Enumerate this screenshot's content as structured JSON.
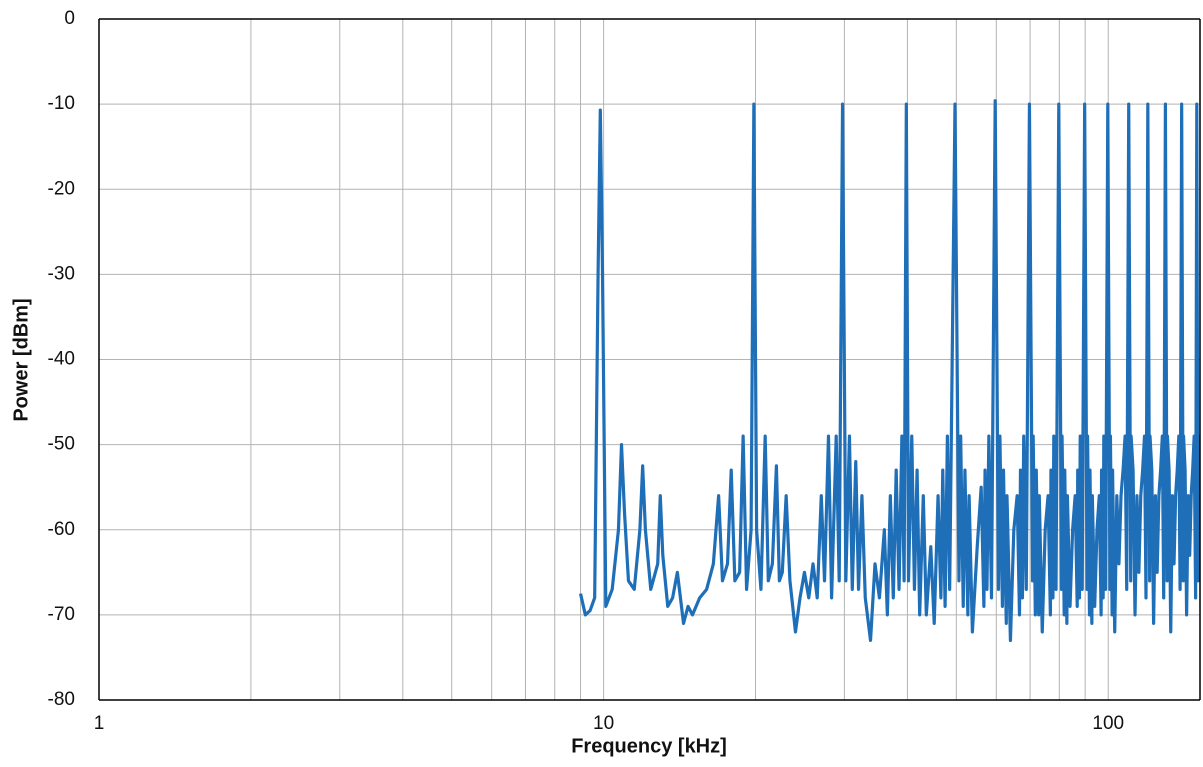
{
  "chart_data": {
    "type": "line",
    "x_label": "Frequency [kHz]",
    "y_label": "Power [dBm]",
    "xscale": "log",
    "xlim": [
      1,
      152
    ],
    "xticks": [
      1,
      10,
      100
    ],
    "xminor": [
      2,
      3,
      4,
      5,
      6,
      7,
      8,
      9,
      20,
      30,
      40,
      50,
      60,
      70,
      80,
      90
    ],
    "ylim": [
      -80,
      0
    ],
    "yticks": [
      0,
      -10,
      -20,
      -30,
      -40,
      -50,
      -60,
      -70,
      -80
    ],
    "grid": true,
    "x": [
      9,
      9.2,
      9.4,
      9.6,
      9.75,
      9.85,
      9.95,
      10.1,
      10.4,
      10.7,
      10.85,
      11,
      11.2,
      11.5,
      11.8,
      11.95,
      12.1,
      12.4,
      12.8,
      12.95,
      13.1,
      13.4,
      13.7,
      14,
      14.4,
      14.7,
      15,
      15.5,
      16,
      16.5,
      16.9,
      17.2,
      17.6,
      17.9,
      18.2,
      18.6,
      18.9,
      19.2,
      19.6,
      19.85,
      20.1,
      20.5,
      20.9,
      21.2,
      21.6,
      22,
      22.3,
      22.6,
      23,
      23.4,
      24,
      24.5,
      25,
      25.5,
      26,
      26.5,
      27,
      27.4,
      27.9,
      28.3,
      28.9,
      29.3,
      29.75,
      30.2,
      30.7,
      31.1,
      31.6,
      32,
      32.5,
      33,
      33.8,
      34.5,
      35.2,
      36,
      36.5,
      37,
      37.5,
      38,
      38.5,
      39,
      39.4,
      39.8,
      40.2,
      40.8,
      41.3,
      41.8,
      42.3,
      43,
      43.6,
      44.5,
      45.2,
      46,
      46.6,
      47,
      47.5,
      48,
      48.5,
      49.7,
      50.6,
      51,
      51.6,
      52,
      52.7,
      53,
      53.8,
      55,
      56,
      56.7,
      57,
      57.5,
      58,
      58.7,
      59.7,
      60.6,
      61,
      61.7,
      62,
      62.8,
      63,
      64,
      65,
      66,
      66.7,
      67,
      67.6,
      68,
      68.8,
      69.8,
      70.8,
      71,
      71.7,
      72,
      72.8,
      73,
      74,
      75,
      76,
      76.8,
      77,
      77.7,
      78,
      78.8,
      79.8,
      80.8,
      81,
      81.8,
      82,
      82.8,
      83,
      84,
      85,
      86,
      86.8,
      87,
      87.7,
      88,
      88.8,
      89.8,
      90.8,
      91,
      91.8,
      92,
      92.8,
      93,
      94,
      95,
      96,
      96.8,
      97,
      97.7,
      98,
      98.8,
      99.8,
      100.8,
      101,
      101.8,
      102,
      103,
      104,
      105,
      106,
      107,
      108,
      108.8,
      109.8,
      110.8,
      111,
      112,
      113,
      114,
      115,
      116,
      117,
      118,
      118.8,
      119.8,
      120.8,
      121,
      122,
      123,
      124,
      125,
      126,
      127,
      128,
      128.8,
      129.8,
      130.8,
      131,
      132,
      133,
      134,
      135,
      136,
      137,
      138,
      138.8,
      139.8,
      140.8,
      141,
      142,
      143,
      144,
      145,
      146,
      147,
      148,
      149,
      149.8,
      150.6,
      151,
      152
    ],
    "series": [
      {
        "color": "#1f6fb8",
        "values": [
          -67.5,
          -70,
          -69.5,
          -68,
          -30,
          -10.7,
          -30,
          -69,
          -67,
          -60,
          -50,
          -58,
          -66,
          -67,
          -60,
          -52.5,
          -60,
          -67,
          -64,
          -56,
          -63,
          -69,
          -68,
          -65,
          -71,
          -69,
          -70,
          -68,
          -67,
          -64,
          -56,
          -66,
          -64,
          -53,
          -66,
          -65,
          -49,
          -67,
          -60,
          -10,
          -60,
          -67,
          -49,
          -66,
          -64,
          -52.5,
          -66,
          -65,
          -56,
          -66,
          -72,
          -68,
          -65,
          -68,
          -64,
          -68,
          -56,
          -66,
          -49,
          -68,
          -49,
          -66,
          -10,
          -66,
          -49,
          -67,
          -52,
          -67,
          -56,
          -68,
          -73,
          -64,
          -68,
          -60,
          -70,
          -56,
          -68,
          -53,
          -67,
          -49,
          -66,
          -10,
          -66,
          -49,
          -67,
          -53,
          -70,
          -56,
          -70,
          -62,
          -71,
          -56,
          -68,
          -53,
          -69,
          -49,
          -67,
          -10,
          -66,
          -49,
          -69,
          -53,
          -70,
          -56,
          -72,
          -62,
          -55,
          -69,
          -53,
          -67,
          -49,
          -68,
          -9.6,
          -67,
          -49,
          -69,
          -53,
          -71,
          -56,
          -73,
          -60,
          -56,
          -70,
          -53,
          -68,
          -49,
          -67,
          -10,
          -66,
          -49,
          -70,
          -53,
          -70,
          -56,
          -72,
          -60,
          -56,
          -70,
          -53,
          -68,
          -49,
          -67,
          -10,
          -67,
          -49,
          -70,
          -53,
          -71,
          -56,
          -69,
          -60,
          -56,
          -69,
          -53,
          -68,
          -49,
          -67,
          -10,
          -67,
          -49,
          -70,
          -53,
          -71,
          -56,
          -69,
          -60,
          -56,
          -70,
          -53,
          -68,
          -49,
          -67,
          -10,
          -67,
          -49,
          -70,
          -53,
          -72,
          -56,
          -64,
          -56,
          -53,
          -49,
          -67,
          -10,
          -66,
          -49,
          -53,
          -70,
          -56,
          -65,
          -56,
          -53,
          -49,
          -68,
          -10,
          -66,
          -49,
          -53,
          -71,
          -56,
          -65,
          -56,
          -53,
          -49,
          -68,
          -10,
          -66,
          -49,
          -53,
          -72,
          -56,
          -64,
          -56,
          -53,
          -49,
          -67,
          -10,
          -66,
          -49,
          -53,
          -70,
          -56,
          -63,
          -56,
          -53,
          -49,
          -68,
          -10,
          -66,
          -49,
          -55
        ]
      }
    ]
  }
}
